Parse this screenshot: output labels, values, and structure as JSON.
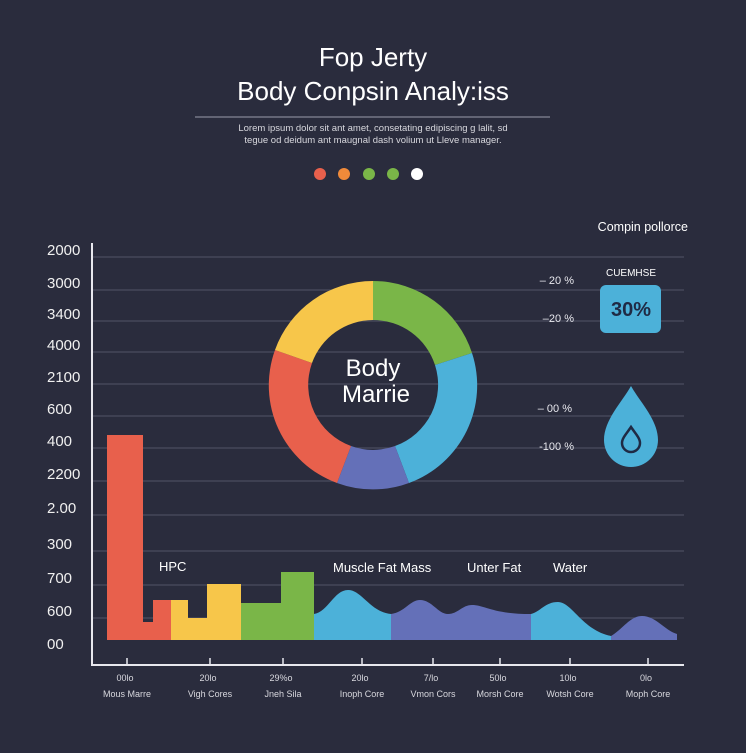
{
  "header": {
    "title": [
      "Fop Jerty",
      "Body Conpsin Analy:iss"
    ],
    "subtitle": [
      "Lorem ipsum dolor sit ant amet, consetating edipiscing g lalit, sd",
      "tegue od deidum ant maugnal dash volium ut Lleve manager."
    ]
  },
  "y_axis_labels": [
    "2000",
    "3000",
    "3400",
    "4000",
    "2100",
    "600",
    "400",
    "2200",
    "2.00",
    "300",
    "700",
    "600",
    "00"
  ],
  "x_axis_labels": [
    {
      "value": "00lo",
      "name": "Mous Marre"
    },
    {
      "value": "20lo",
      "name": "Vigh Cores"
    },
    {
      "value": "29%o",
      "name": "Jneh Sila"
    },
    {
      "value": "20lo",
      "name": "Inoph Core"
    },
    {
      "value": "7/lo",
      "name": "Vmon Cors"
    },
    {
      "value": "50lo",
      "name": "Morsh Core"
    },
    {
      "value": "10lo",
      "name": "Wotsh Core"
    },
    {
      "value": "0lo",
      "name": "Moph Core"
    }
  ],
  "category_labels": [
    "HPC",
    "Muscle Fat Mass",
    "Unter Fat",
    "Water"
  ],
  "donut": {
    "label": [
      "Body",
      "Marrie"
    ]
  },
  "panel": {
    "title": "Compin pollorce",
    "badge_title": "CUEMHSE",
    "badge_value": "30%",
    "percent_labels": [
      "– 20 %",
      "–20 %",
      "– 00 %",
      "-100 %"
    ]
  }
}
